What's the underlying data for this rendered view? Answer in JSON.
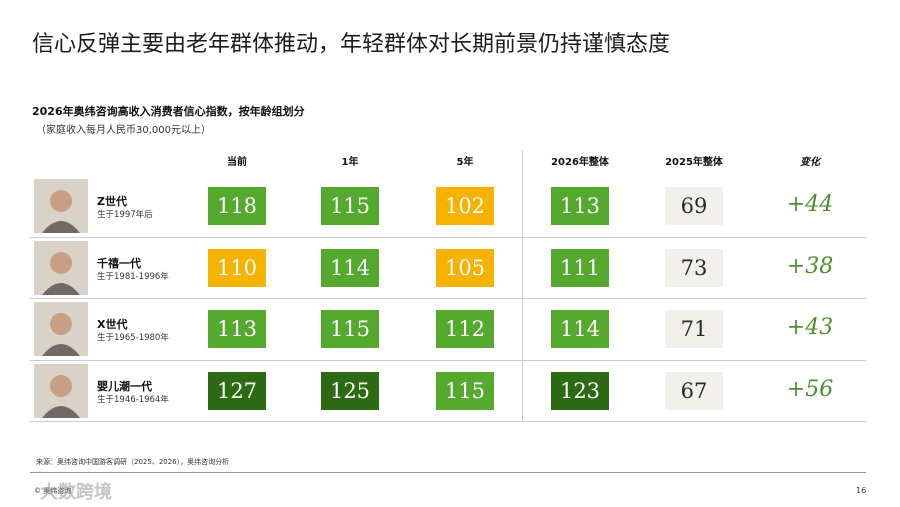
{
  "title": "信心反弹主要由老年群体推动，年轻群体对长期前景仍持谨慎态度",
  "subtitle": "2026年奥纬咨询高收入消费者信心指数，按年龄组划分",
  "note": "（家庭收入每月人民币30,000元以上）",
  "table": {
    "headers": [
      "当前",
      "1年",
      "5年",
      "2026年整体",
      "2025年整体",
      "变化"
    ],
    "rows": [
      {
        "name": "Z世代",
        "birth": "生于1997年后",
        "values": [
          118,
          115,
          102,
          113,
          69
        ],
        "change": "+44",
        "colors": [
          "#56a92f",
          "#56a92f",
          "#f5b300",
          "#56a92f",
          "#f2f0ea"
        ]
      },
      {
        "name": "千禧一代",
        "birth": "生于1981-1996年",
        "values": [
          110,
          114,
          105,
          111,
          73
        ],
        "change": "+38",
        "colors": [
          "#f5b300",
          "#56a92f",
          "#f5b300",
          "#56a92f",
          "#f2f0ea"
        ]
      },
      {
        "name": "X世代",
        "birth": "生于1965-1980年",
        "values": [
          113,
          115,
          112,
          114,
          71
        ],
        "change": "+43",
        "colors": [
          "#56a92f",
          "#56a92f",
          "#56a92f",
          "#56a92f",
          "#f2f0ea"
        ]
      },
      {
        "name": "婴儿潮一代",
        "birth": "生于1946-1964年",
        "values": [
          127,
          125,
          115,
          123,
          67
        ],
        "change": "+56",
        "colors": [
          "#2d6a14",
          "#2d6a14",
          "#56a92f",
          "#2d6a14",
          "#f2f0ea"
        ]
      }
    ]
  },
  "source": "来源：奥纬咨询中国游客调研（2025、2026），奥纬咨询分析",
  "footer": {
    "copyright": "© 奥纬咨询",
    "watermark": "大数跨境",
    "page": "16"
  }
}
